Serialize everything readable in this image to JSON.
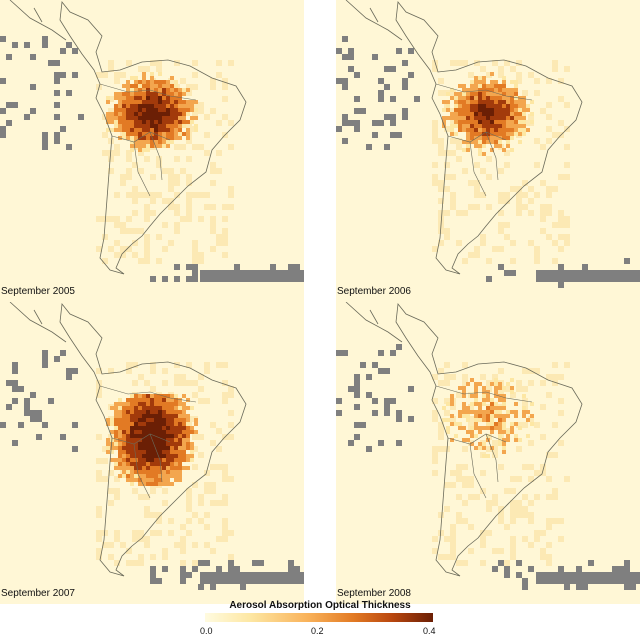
{
  "panels": [
    {
      "caption": "September 2005",
      "intensity": 0.9
    },
    {
      "caption": "September 2006",
      "intensity": 0.7
    },
    {
      "caption": "September 2007",
      "intensity": 1.0
    },
    {
      "caption": "September 2008",
      "intensity": 0.25
    }
  ],
  "legend": {
    "title": "Aerosol Absorption Optical Thickness",
    "ticks": [
      "0.0",
      "0.2",
      "0.4"
    ],
    "range": [
      0.0,
      0.4
    ]
  },
  "colors": {
    "background": "#fff7d6",
    "no_data": "#7f7f7f",
    "coast": "#6a6a5a",
    "low": "#fde7a3",
    "mid": "#e27a24",
    "high": "#6b1f05"
  }
}
